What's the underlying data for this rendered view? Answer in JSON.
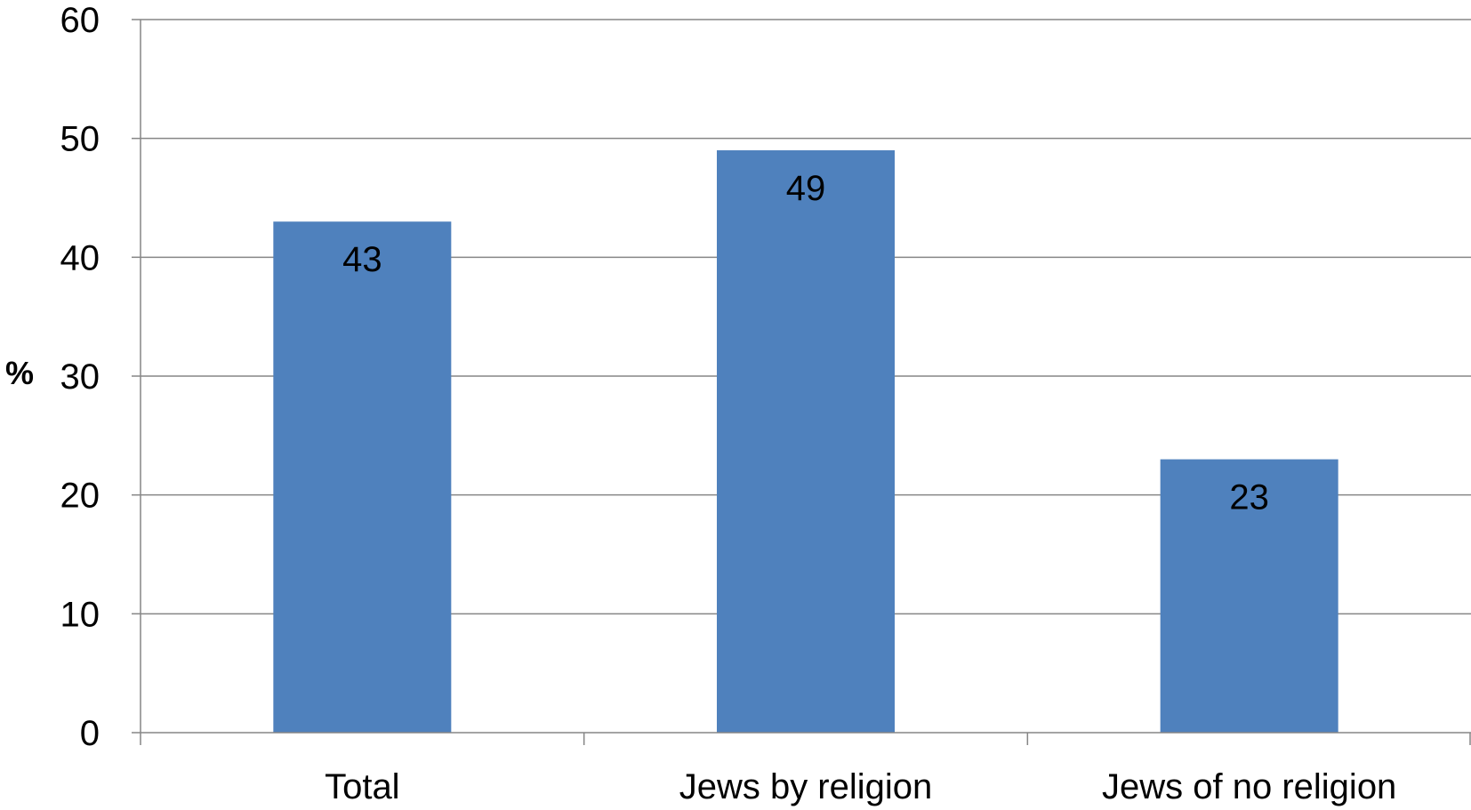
{
  "chart_data": {
    "type": "bar",
    "categories": [
      "Total",
      "Jews by religion",
      "Jews of no religion"
    ],
    "values": [
      43,
      49,
      23
    ],
    "data_labels": [
      "43",
      "49",
      "23"
    ],
    "title": "",
    "xlabel": "",
    "ylabel": "%",
    "ylim": [
      0,
      60
    ],
    "yticks": [
      0,
      10,
      20,
      30,
      40,
      50,
      60
    ],
    "ytick_labels": [
      "0",
      "10",
      "20",
      "30",
      "40",
      "50",
      "60"
    ],
    "grid": true,
    "legend": "none",
    "colors": {
      "bar": "#4F81BD",
      "grid": "#868686",
      "axis": "#868686"
    }
  }
}
